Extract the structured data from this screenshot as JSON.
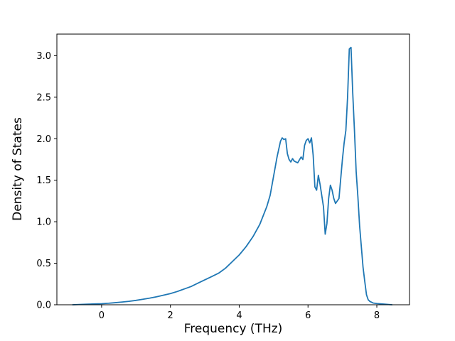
{
  "chart_data": {
    "type": "line",
    "title": "",
    "xlabel": "Frequency (THz)",
    "ylabel": "Density of States",
    "xlim": [
      -1.3,
      8.95
    ],
    "ylim": [
      0,
      3.26
    ],
    "xticks": [
      0,
      2,
      4,
      6,
      8
    ],
    "xtick_labels": [
      "0",
      "2",
      "4",
      "6",
      "8"
    ],
    "yticks": [
      0.0,
      0.5,
      1.0,
      1.5,
      2.0,
      2.5,
      3.0
    ],
    "ytick_labels": [
      "0.0",
      "0.5",
      "1.0",
      "1.5",
      "2.0",
      "2.5",
      "3.0"
    ],
    "grid": false,
    "legend": "none",
    "line_color": "#1f77b4",
    "line_width": 1.8,
    "series": [
      {
        "name": "density-of-states",
        "x": [
          -0.85,
          -0.6,
          -0.4,
          -0.2,
          0.0,
          0.2,
          0.4,
          0.6,
          0.8,
          1.0,
          1.2,
          1.4,
          1.6,
          1.8,
          2.0,
          2.2,
          2.4,
          2.6,
          2.8,
          3.0,
          3.2,
          3.4,
          3.6,
          3.8,
          4.0,
          4.2,
          4.4,
          4.6,
          4.8,
          4.9,
          5.0,
          5.1,
          5.2,
          5.25,
          5.3,
          5.35,
          5.4,
          5.45,
          5.5,
          5.55,
          5.6,
          5.7,
          5.8,
          5.85,
          5.9,
          5.95,
          6.0,
          6.05,
          6.1,
          6.15,
          6.2,
          6.25,
          6.3,
          6.35,
          6.45,
          6.5,
          6.55,
          6.6,
          6.65,
          6.7,
          6.75,
          6.8,
          6.9,
          7.0,
          7.05,
          7.1,
          7.15,
          7.2,
          7.25,
          7.3,
          7.35,
          7.4,
          7.45,
          7.5,
          7.55,
          7.6,
          7.65,
          7.7,
          7.75,
          7.8,
          7.9,
          8.0,
          8.2,
          8.45
        ],
        "y": [
          0.0,
          0.004,
          0.007,
          0.01,
          0.013,
          0.018,
          0.025,
          0.033,
          0.042,
          0.053,
          0.066,
          0.08,
          0.096,
          0.115,
          0.135,
          0.16,
          0.19,
          0.22,
          0.26,
          0.3,
          0.34,
          0.38,
          0.44,
          0.52,
          0.6,
          0.7,
          0.82,
          0.97,
          1.18,
          1.32,
          1.55,
          1.78,
          1.97,
          2.01,
          1.99,
          2.0,
          1.82,
          1.75,
          1.72,
          1.76,
          1.73,
          1.71,
          1.78,
          1.75,
          1.92,
          1.98,
          2.0,
          1.95,
          2.01,
          1.8,
          1.42,
          1.38,
          1.56,
          1.45,
          1.18,
          0.85,
          0.98,
          1.28,
          1.44,
          1.38,
          1.28,
          1.22,
          1.28,
          1.75,
          1.95,
          2.1,
          2.5,
          3.08,
          3.1,
          2.55,
          2.1,
          1.6,
          1.3,
          0.95,
          0.7,
          0.45,
          0.28,
          0.12,
          0.06,
          0.04,
          0.02,
          0.015,
          0.008,
          0.0
        ]
      }
    ]
  }
}
